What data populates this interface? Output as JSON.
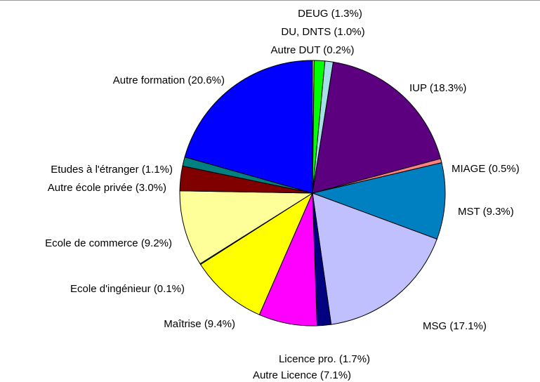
{
  "chart_data": {
    "type": "pie",
    "categories": [
      "Autre DUT",
      "DEUG",
      "DU, DNTS",
      "IUP",
      "MIAGE",
      "MST",
      "MSG",
      "Licence pro.",
      "Autre Licence",
      "Maîtrise",
      "Ecole d'ingénieur",
      "Ecole de commerce",
      "Autre école privée",
      "Etudes à l'étranger",
      "Autre formation"
    ],
    "values": [
      0.2,
      1.3,
      1.0,
      18.3,
      0.5,
      9.3,
      17.1,
      1.7,
      7.1,
      9.4,
      0.1,
      9.2,
      3.0,
      1.1,
      20.6
    ],
    "value_labels": [
      "(0.2%)",
      "(1.3%)",
      "(1.0%)",
      "(18.3%)",
      "(0.5%)",
      "(9.3%)",
      "(17.1%)",
      "(1.7%)",
      "(7.1%)",
      "(9.4%)",
      "(0.1%)",
      "(9.2%)",
      "(3.0%)",
      "(1.1%)",
      "(20.6%)"
    ],
    "colors": [
      "#ffff00",
      "#00ff00",
      "#a6dfe8",
      "#5c0080",
      "#ff8080",
      "#0080c0",
      "#c0c0ff",
      "#000080",
      "#ff00ff",
      "#ffff00",
      "#00ffff",
      "#ffff99",
      "#800000",
      "#008080",
      "#0000ff"
    ]
  }
}
